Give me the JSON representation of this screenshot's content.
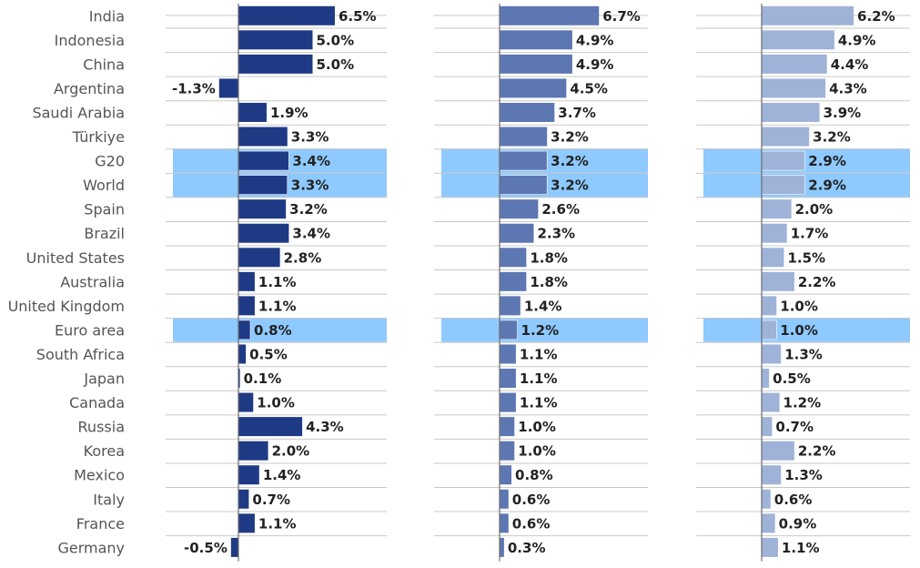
{
  "chart_data": {
    "type": "bar",
    "orientation": "horizontal",
    "categories": [
      "India",
      "Indonesia",
      "China",
      "Argentina",
      "Saudi Arabia",
      "Türkiye",
      "G20",
      "World",
      "Spain",
      "Brazil",
      "United States",
      "Australia",
      "United Kingdom",
      "Euro area",
      "South Africa",
      "Japan",
      "Canada",
      "Russia",
      "Korea",
      "Mexico",
      "Italy",
      "France",
      "Germany"
    ],
    "highlight_categories": [
      "G20",
      "World",
      "Euro area"
    ],
    "highlight_color": "#8ec9ff",
    "value_suffix": "%",
    "series": [
      {
        "color": "#1f3a85",
        "values": [
          6.5,
          5.0,
          5.0,
          -1.3,
          1.9,
          3.3,
          3.4,
          3.3,
          3.2,
          3.4,
          2.8,
          1.1,
          1.1,
          0.8,
          0.5,
          0.1,
          1.0,
          4.3,
          2.0,
          1.4,
          0.7,
          1.1,
          -0.5
        ]
      },
      {
        "color": "#5d77b3",
        "values": [
          6.7,
          4.9,
          4.9,
          4.5,
          3.7,
          3.2,
          3.2,
          3.2,
          2.6,
          2.3,
          1.8,
          1.8,
          1.4,
          1.2,
          1.1,
          1.1,
          1.1,
          1.0,
          1.0,
          0.8,
          0.6,
          0.6,
          0.3
        ]
      },
      {
        "color": "#9fb3d9",
        "values": [
          6.2,
          4.9,
          4.4,
          4.3,
          3.9,
          3.2,
          2.9,
          2.9,
          2.0,
          1.7,
          1.5,
          2.2,
          1.0,
          1.0,
          1.3,
          0.5,
          1.2,
          0.7,
          2.2,
          1.3,
          0.6,
          0.9,
          1.1
        ]
      }
    ],
    "legend": "none",
    "grid": true
  }
}
